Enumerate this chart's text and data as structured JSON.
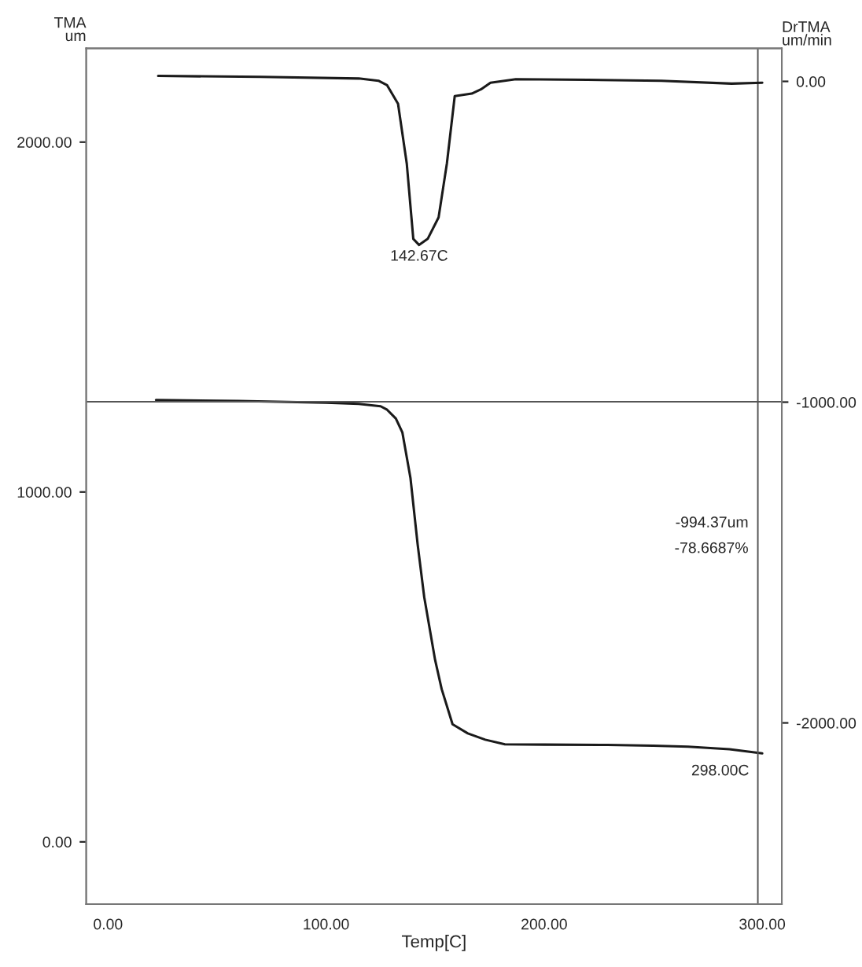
{
  "chart_data": {
    "type": "line",
    "xlabel": "Temp[C]",
    "ylabel": "TMA\num",
    "y2label": "DrTMA\num/min",
    "xlim": [
      -10,
      309
    ],
    "xticks": [
      {
        "value": 0,
        "label": "0.00"
      },
      {
        "value": 100,
        "label": "100.00"
      },
      {
        "value": 200,
        "label": "200.00"
      },
      {
        "value": 300,
        "label": "300.00"
      }
    ],
    "ylim": [
      -178,
      2268
    ],
    "yticks": [
      {
        "value": 0,
        "label": "0.00"
      },
      {
        "value": 1000,
        "label": "1000.00"
      },
      {
        "value": 2000,
        "label": "2000.00"
      }
    ],
    "y2lim": [
      -2565,
      103
    ],
    "y2ticks": [
      {
        "value": 0,
        "label": "0.00"
      },
      {
        "value": -1000,
        "label": "-1000.00"
      },
      {
        "value": -2000,
        "label": "-2000.00"
      }
    ],
    "series": [
      {
        "color": "#1a1a1a",
        "x": [
          22,
          60,
          100,
          115,
          125,
          128,
          132,
          135,
          138.7,
          142,
          145,
          150,
          153,
          158,
          165,
          173,
          182,
          200,
          229,
          250,
          266,
          285,
          300
        ],
        "values": [
          1263,
          1260,
          1255,
          1252,
          1245,
          1235,
          1210,
          1170,
          1040,
          850,
          700,
          520,
          437,
          336,
          310,
          292,
          279,
          278,
          277,
          275,
          272,
          265,
          253
        ]
      },
      {
        "color": "#1a1a1a",
        "axis": "y2",
        "x": [
          23,
          70,
          115,
          124,
          128,
          133,
          137,
          140,
          142.67,
          146.6,
          151.6,
          155.4,
          159,
          166.8,
          171,
          175.4,
          187,
          220,
          253.7,
          286,
          300
        ],
        "values": [
          17,
          14,
          9,
          2,
          -12,
          -70,
          -256,
          -491,
          -510,
          -491,
          -424,
          -256,
          -46,
          -38,
          -25,
          -4,
          7,
          5,
          2,
          -7,
          -4
        ]
      }
    ],
    "ref_lines": [
      {
        "axis": "y",
        "value": 1258,
        "color": "#555555"
      },
      {
        "axis": "x",
        "value": 298,
        "color": "#555555"
      }
    ],
    "annotations": [
      {
        "text": "142.67C",
        "x": 142.67,
        "y": 1724
      },
      "-994.37um",
      "-78.6687%",
      {
        "text": "298.00C",
        "x": 298,
        "y": 253
      }
    ],
    "grid": false,
    "marker": "none",
    "line_style": "solid"
  }
}
